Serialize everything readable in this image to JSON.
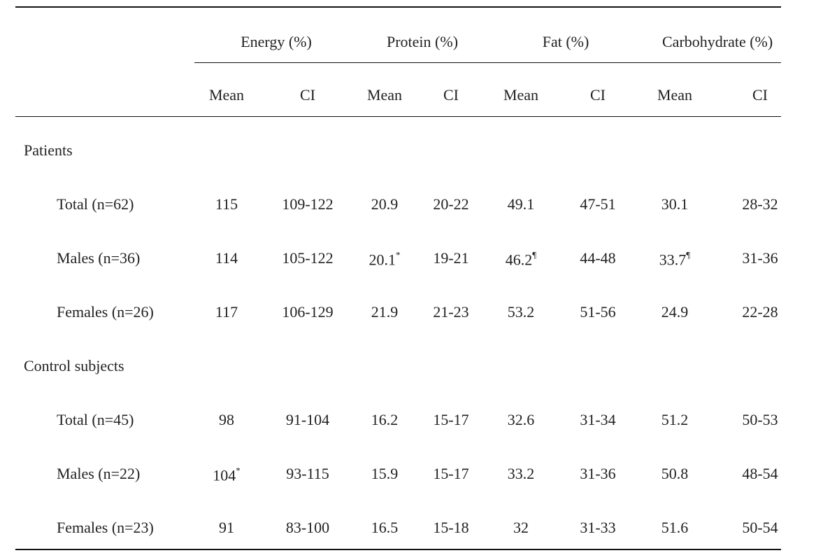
{
  "table": {
    "group_headers": [
      "Energy (%)",
      "Protein (%)",
      "Fat (%)",
      "Carbohydrate (%)"
    ],
    "sub_headers": [
      "Mean",
      "CI",
      "Mean",
      "CI",
      "Mean",
      "CI",
      "Mean",
      "CI"
    ],
    "sections": [
      {
        "label": "Patients",
        "rows": [
          {
            "label": "Total (n=62)",
            "cells": [
              "115",
              "109-122",
              "20.9",
              "20-22",
              "49.1",
              "47-51",
              "30.1",
              "28-32"
            ]
          },
          {
            "label": "Males (n=36)",
            "cells": [
              "114",
              "105-122",
              {
                "text": "20.1",
                "sup": "*"
              },
              "19-21",
              {
                "text": "46.2",
                "sup": "¶"
              },
              "44-48",
              {
                "text": "33.7",
                "sup": "¶"
              },
              "31-36"
            ]
          },
          {
            "label": "Females (n=26)",
            "cells": [
              "117",
              "106-129",
              "21.9",
              "21-23",
              "53.2",
              "51-56",
              "24.9",
              "22-28"
            ]
          }
        ]
      },
      {
        "label": "Control subjects",
        "rows": [
          {
            "label": "Total (n=45)",
            "cells": [
              "98",
              "91-104",
              "16.2",
              "15-17",
              "32.6",
              "31-34",
              "51.2",
              "50-53"
            ]
          },
          {
            "label": "Males (n=22)",
            "cells": [
              {
                "text": "104",
                "sup": "*"
              },
              "93-115",
              "15.9",
              "15-17",
              "33.2",
              "31-36",
              "50.8",
              "48-54"
            ]
          },
          {
            "label": "Females (n=23)",
            "cells": [
              "91",
              "83-100",
              "16.5",
              "15-18",
              "32",
              "31-33",
              "51.6",
              "50-54"
            ]
          }
        ]
      }
    ]
  }
}
